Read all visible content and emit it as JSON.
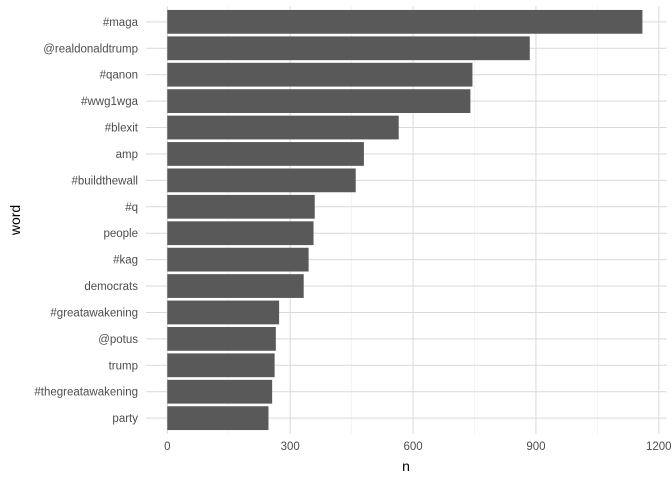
{
  "chart_data": {
    "type": "bar",
    "orientation": "horizontal",
    "xlabel": "n",
    "ylabel": "word",
    "xlim": [
      -52,
      1220
    ],
    "xticks": [
      0,
      300,
      600,
      900,
      1200
    ],
    "categories": [
      "#maga",
      "@realdonaldtrump",
      "#qanon",
      "#wwg1wga",
      "#blexit",
      "amp",
      "#buildthewall",
      "#q",
      "people",
      "#kag",
      "democrats",
      "#greatawakening",
      "@potus",
      "trump",
      "#thegreatawakening",
      "party"
    ],
    "values": [
      1160,
      885,
      745,
      740,
      565,
      480,
      460,
      360,
      357,
      345,
      333,
      273,
      265,
      262,
      256,
      247
    ],
    "bar_color": "#595959",
    "grid": true,
    "legend": "none"
  }
}
